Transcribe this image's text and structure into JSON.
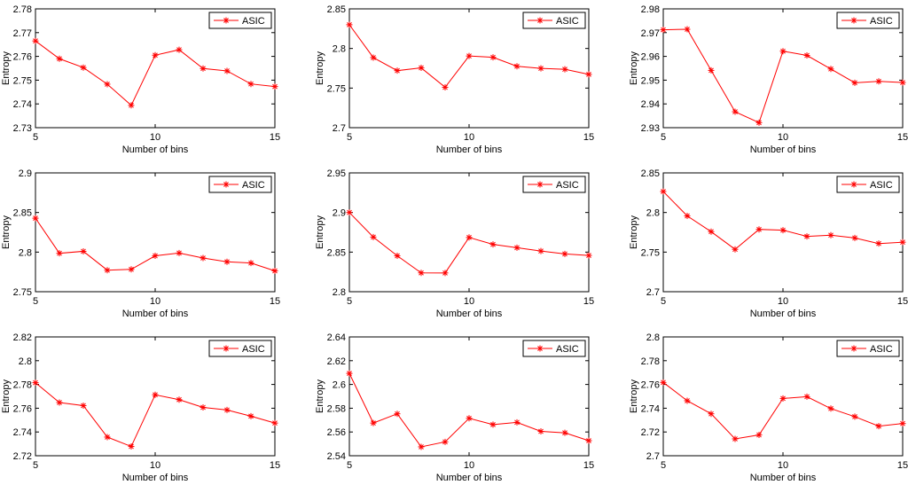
{
  "figure": {
    "series_color": "#ff0000"
  },
  "chart_data": [
    {
      "type": "line",
      "xlabel": "Number of bins",
      "ylabel": "Entropy",
      "legend": "ASIC",
      "legend_position": "top-right",
      "xlim": [
        5,
        15
      ],
      "ylim": [
        2.73,
        2.78
      ],
      "xticks": [
        "5",
        "10",
        "15"
      ],
      "yticks": [
        "2.73",
        "2.74",
        "2.75",
        "2.76",
        "2.77",
        "2.78"
      ],
      "x": [
        5,
        6,
        7,
        8,
        9,
        10,
        11,
        12,
        13,
        14,
        15
      ],
      "values": [
        2.7665,
        2.759,
        2.7553,
        2.7483,
        2.7394,
        2.7605,
        2.7628,
        2.7549,
        2.7539,
        2.7484,
        2.7473
      ]
    },
    {
      "type": "line",
      "xlabel": "Number of bins",
      "ylabel": "Entropy",
      "legend": "ASIC",
      "legend_position": "top-right",
      "xlim": [
        5,
        15
      ],
      "ylim": [
        2.7,
        2.85
      ],
      "xticks": [
        "5",
        "10",
        "15"
      ],
      "yticks": [
        "2.7",
        "2.75",
        "2.8",
        "2.85"
      ],
      "x": [
        5,
        6,
        7,
        8,
        9,
        10,
        11,
        12,
        13,
        14,
        15
      ],
      "values": [
        2.83,
        2.7885,
        2.772,
        2.7755,
        2.751,
        2.7905,
        2.7888,
        2.7775,
        2.7748,
        2.7737,
        2.7673
      ]
    },
    {
      "type": "line",
      "xlabel": "Number of bins",
      "ylabel": "Entropy",
      "legend": "ASIC",
      "legend_position": "top-right",
      "xlim": [
        5,
        15
      ],
      "ylim": [
        2.93,
        2.98
      ],
      "xticks": [
        "5",
        "10",
        "15"
      ],
      "yticks": [
        "2.93",
        "2.94",
        "2.95",
        "2.96",
        "2.97",
        "2.98"
      ],
      "x": [
        5,
        6,
        7,
        8,
        9,
        10,
        11,
        12,
        13,
        14,
        15
      ],
      "values": [
        2.9712,
        2.9714,
        2.9541,
        2.9367,
        2.9321,
        2.9622,
        2.9604,
        2.9547,
        2.9489,
        2.9495,
        2.949
      ]
    },
    {
      "type": "line",
      "xlabel": "Number of bins",
      "ylabel": "Entropy",
      "legend": "ASIC",
      "legend_position": "top-right",
      "xlim": [
        5,
        15
      ],
      "ylim": [
        2.75,
        2.9
      ],
      "xticks": [
        "5",
        "10",
        "15"
      ],
      "yticks": [
        "2.75",
        "2.8",
        "2.85",
        "2.9"
      ],
      "x": [
        5,
        6,
        7,
        8,
        9,
        10,
        11,
        12,
        13,
        14,
        15
      ],
      "values": [
        2.8428,
        2.7985,
        2.801,
        2.7772,
        2.7782,
        2.7953,
        2.7988,
        2.7925,
        2.7878,
        2.7862,
        2.7763
      ]
    },
    {
      "type": "line",
      "xlabel": "Number of bins",
      "ylabel": "Entropy",
      "legend": "ASIC",
      "legend_position": "top-right",
      "xlim": [
        5,
        15
      ],
      "ylim": [
        2.8,
        2.95
      ],
      "xticks": [
        "5",
        "10",
        "15"
      ],
      "yticks": [
        "2.8",
        "2.85",
        "2.9",
        "2.95"
      ],
      "x": [
        5,
        6,
        7,
        8,
        9,
        10,
        11,
        12,
        13,
        14,
        15
      ],
      "values": [
        2.9,
        2.869,
        2.8453,
        2.8238,
        2.8237,
        2.8685,
        2.8598,
        2.8556,
        2.8513,
        2.8477,
        2.8458
      ]
    },
    {
      "type": "line",
      "xlabel": "Number of bins",
      "ylabel": "Entropy",
      "legend": "ASIC",
      "legend_position": "top-right",
      "xlim": [
        5,
        15
      ],
      "ylim": [
        2.7,
        2.85
      ],
      "xticks": [
        "5",
        "10",
        "15"
      ],
      "yticks": [
        "2.7",
        "2.75",
        "2.8",
        "2.85"
      ],
      "x": [
        5,
        6,
        7,
        8,
        9,
        10,
        11,
        12,
        13,
        14,
        15
      ],
      "values": [
        2.8265,
        2.7957,
        2.7758,
        2.7535,
        2.7787,
        2.7777,
        2.7698,
        2.7713,
        2.7678,
        2.7608,
        2.7625
      ]
    },
    {
      "type": "line",
      "xlabel": "Number of bins",
      "ylabel": "Entropy",
      "legend": "ASIC",
      "legend_position": "top-right",
      "xlim": [
        5,
        15
      ],
      "ylim": [
        2.72,
        2.82
      ],
      "xticks": [
        "5",
        "10",
        "15"
      ],
      "yticks": [
        "2.72",
        "2.74",
        "2.76",
        "2.78",
        "2.8",
        "2.82"
      ],
      "x": [
        5,
        6,
        7,
        8,
        9,
        10,
        11,
        12,
        13,
        14,
        15
      ],
      "values": [
        2.7815,
        2.7648,
        2.7622,
        2.7357,
        2.7278,
        2.7713,
        2.7672,
        2.7607,
        2.7585,
        2.7533,
        2.7475
      ]
    },
    {
      "type": "line",
      "xlabel": "Number of bins",
      "ylabel": "Entropy",
      "legend": "ASIC",
      "legend_position": "top-right",
      "xlim": [
        5,
        15
      ],
      "ylim": [
        2.54,
        2.64
      ],
      "xticks": [
        "5",
        "10",
        "15"
      ],
      "yticks": [
        "2.54",
        "2.56",
        "2.58",
        "2.6",
        "2.62",
        "2.64"
      ],
      "x": [
        5,
        6,
        7,
        8,
        9,
        10,
        11,
        12,
        13,
        14,
        15
      ],
      "values": [
        2.6093,
        2.5675,
        2.5753,
        2.5475,
        2.5517,
        2.5715,
        2.5662,
        2.5681,
        2.5605,
        2.5593,
        2.5527
      ]
    },
    {
      "type": "line",
      "xlabel": "Number of bins",
      "ylabel": "Entropy",
      "legend": "ASIC",
      "legend_position": "top-right",
      "xlim": [
        5,
        15
      ],
      "ylim": [
        2.7,
        2.8
      ],
      "xticks": [
        "5",
        "10",
        "15"
      ],
      "yticks": [
        "2.7",
        "2.72",
        "2.74",
        "2.76",
        "2.78",
        "2.8"
      ],
      "x": [
        5,
        6,
        7,
        8,
        9,
        10,
        11,
        12,
        13,
        14,
        15
      ],
      "values": [
        2.7617,
        2.7463,
        2.7353,
        2.7142,
        2.7175,
        2.7482,
        2.7497,
        2.7397,
        2.7329,
        2.7249,
        2.7271
      ]
    }
  ]
}
